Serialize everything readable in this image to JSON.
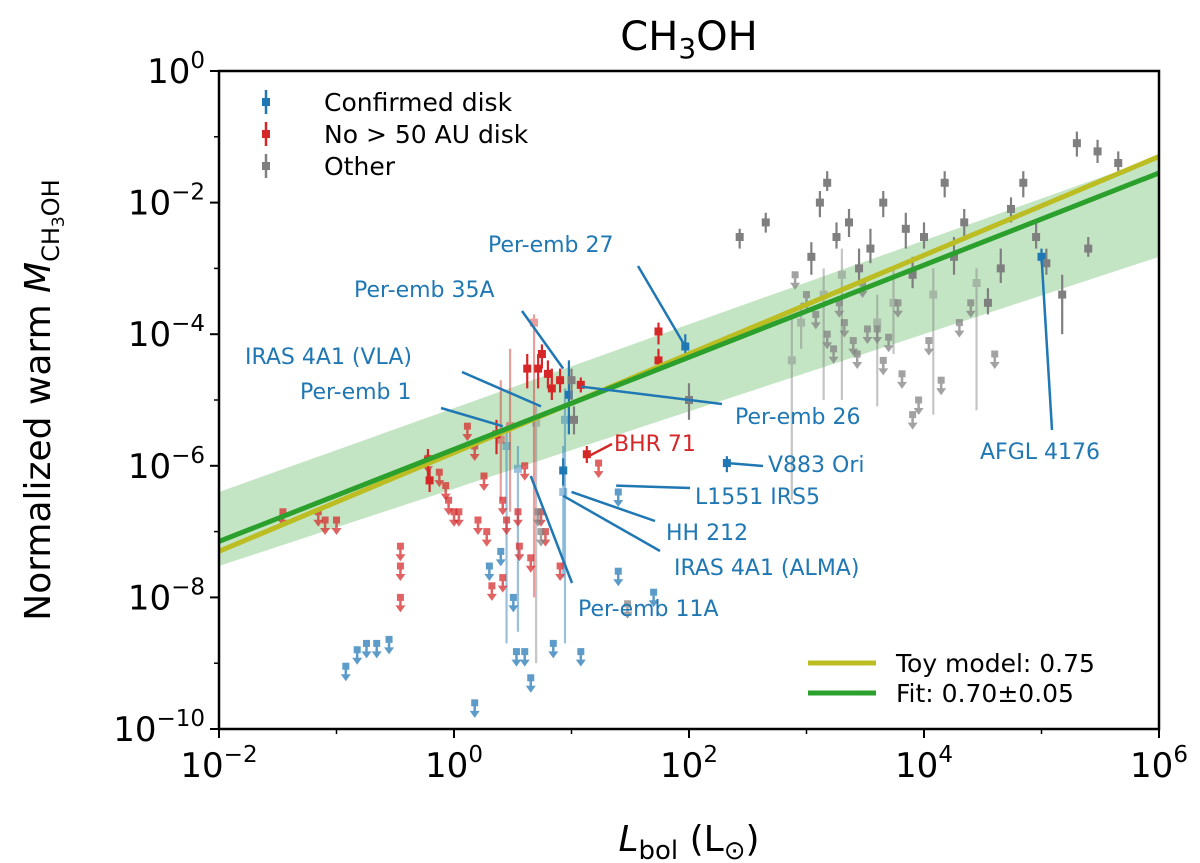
{
  "chart_data": {
    "type": "scatter",
    "title": "CH₃OH",
    "xlabel": "L_bol (L_⊙)",
    "ylabel": "Normalized warm M_CH3OH",
    "xscale": "log",
    "yscale": "log",
    "xlim": [
      0.01,
      1000000
    ],
    "ylim": [
      1e-10,
      1
    ],
    "x_ticks": [
      {
        "label_base": "10",
        "label_exp": "−2",
        "value": 0.01
      },
      {
        "label_base": "10",
        "label_exp": "0",
        "value": 1
      },
      {
        "label_base": "10",
        "label_exp": "2",
        "value": 100
      },
      {
        "label_base": "10",
        "label_exp": "4",
        "value": 10000
      },
      {
        "label_base": "10",
        "label_exp": "6",
        "value": 1000000
      }
    ],
    "y_ticks": [
      {
        "label_base": "10",
        "label_exp": "−10",
        "value": 1e-10
      },
      {
        "label_base": "10",
        "label_exp": "−8",
        "value": 1e-08
      },
      {
        "label_base": "10",
        "label_exp": "−6",
        "value": 1e-06
      },
      {
        "label_base": "10",
        "label_exp": "−4",
        "value": 0.0001
      },
      {
        "label_base": "10",
        "label_exp": "−2",
        "value": 0.01
      },
      {
        "label_base": "10",
        "label_exp": "0",
        "value": 1
      }
    ],
    "colors": {
      "disk": "#1f77b4",
      "nodisk": "#d62728",
      "other": "#7f7f7f",
      "fit": "#2ca02c",
      "toy": "#bcbd22",
      "band": "#2ca02c"
    },
    "series": [
      {
        "name": "Confirmed disk",
        "key": "disk",
        "detections": [
          {
            "x": 93,
            "y": 6.5e-05,
            "lo": 4e-05,
            "hi": 0.0001
          },
          {
            "x": 9.5,
            "y": 1.2e-05,
            "lo": 3e-06,
            "hi": 4e-05
          },
          {
            "x": 8.8,
            "y": 5e-06,
            "lo": 2e-09,
            "hi": 1.5e-05,
            "faint": true
          },
          {
            "x": 8.5,
            "y": 8.5e-07,
            "lo": 5e-07,
            "hi": 1.3e-06
          },
          {
            "x": 8.5,
            "y": 4e-07,
            "lo": 2e-08,
            "hi": 2e-06,
            "faint": true
          },
          {
            "x": 210,
            "y": 1.1e-06,
            "lo": 8e-07,
            "hi": 1.4e-06
          },
          {
            "x": 3.5,
            "y": 9e-07,
            "lo": 3e-09,
            "hi": 2e-06,
            "faint": true
          },
          {
            "x": 2.8,
            "y": 2e-06,
            "lo": 2e-09,
            "hi": 4e-06,
            "faint": true
          },
          {
            "x": 100000,
            "y": 0.0015,
            "lo": 0.0012,
            "hi": 0.002
          }
        ],
        "upper_limits": [
          {
            "x": 0.12,
            "y": 9e-10
          },
          {
            "x": 0.15,
            "y": 1.6e-09
          },
          {
            "x": 0.18,
            "y": 2e-09
          },
          {
            "x": 0.22,
            "y": 2e-09
          },
          {
            "x": 0.28,
            "y": 2.3e-09
          },
          {
            "x": 1.5,
            "y": 2.5e-10
          },
          {
            "x": 2,
            "y": 3e-08
          },
          {
            "x": 2.5,
            "y": 5e-08
          },
          {
            "x": 3.2,
            "y": 1e-08
          },
          {
            "x": 3.4,
            "y": 1.5e-09
          },
          {
            "x": 4,
            "y": 1.5e-09
          },
          {
            "x": 4.5,
            "y": 6e-10
          },
          {
            "x": 7,
            "y": 2e-09
          },
          {
            "x": 12,
            "y": 1.5e-09
          },
          {
            "x": 25,
            "y": 4e-07
          },
          {
            "x": 25,
            "y": 2.5e-08
          },
          {
            "x": 50,
            "y": 1.2e-08
          }
        ]
      },
      {
        "name": "No > 50 AU disk",
        "key": "nodisk",
        "detections": [
          {
            "x": 0.6,
            "y": 1.2e-06,
            "lo": 6e-07,
            "hi": 1.8e-06
          },
          {
            "x": 0.62,
            "y": 6e-07,
            "lo": 4e-07,
            "hi": 9e-07
          },
          {
            "x": 2.3,
            "y": 3e-06,
            "lo": 1.5e-06,
            "hi": 5e-06
          },
          {
            "x": 2.5,
            "y": 2.5e-06,
            "lo": 3e-07,
            "hi": 2e-05,
            "faint": true
          },
          {
            "x": 3,
            "y": 4e-06,
            "lo": 2e-07,
            "hi": 6e-05,
            "faint": true
          },
          {
            "x": 4.2,
            "y": 3e-05,
            "lo": 1.5e-05,
            "hi": 5e-05
          },
          {
            "x": 4.8,
            "y": 0.00015,
            "lo": 1e-08,
            "hi": 0.0002,
            "faint": true
          },
          {
            "x": 5.2,
            "y": 3e-05,
            "lo": 1.5e-05,
            "hi": 5e-05
          },
          {
            "x": 5.6,
            "y": 5e-05,
            "lo": 3e-05,
            "hi": 7e-05
          },
          {
            "x": 6.3,
            "y": 2.5e-05,
            "lo": 1.5e-05,
            "hi": 4e-05
          },
          {
            "x": 6.8,
            "y": 1.5e-05,
            "lo": 1e-05,
            "hi": 3e-05
          },
          {
            "x": 8,
            "y": 2e-05,
            "lo": 1.3e-05,
            "hi": 3e-05
          },
          {
            "x": 12,
            "y": 1.7e-05,
            "lo": 1.3e-05,
            "hi": 2.2e-05
          },
          {
            "x": 13.5,
            "y": 1.5e-06,
            "lo": 1.1e-06,
            "hi": 2e-06
          },
          {
            "x": 55,
            "y": 0.00011,
            "lo": 7e-05,
            "hi": 0.00015
          },
          {
            "x": 55,
            "y": 4e-05,
            "lo": 3e-05,
            "hi": 6e-05
          }
        ],
        "upper_limits": [
          {
            "x": 0.035,
            "y": 2e-07
          },
          {
            "x": 0.07,
            "y": 2e-07
          },
          {
            "x": 0.08,
            "y": 1.5e-07
          },
          {
            "x": 0.1,
            "y": 1.5e-07
          },
          {
            "x": 0.35,
            "y": 6e-08
          },
          {
            "x": 0.35,
            "y": 3e-08
          },
          {
            "x": 0.35,
            "y": 1e-08
          },
          {
            "x": 0.6,
            "y": 1.3e-06
          },
          {
            "x": 0.75,
            "y": 8e-07
          },
          {
            "x": 0.85,
            "y": 5e-07
          },
          {
            "x": 0.9,
            "y": 3e-07
          },
          {
            "x": 1,
            "y": 2e-07
          },
          {
            "x": 1.1,
            "y": 2e-07
          },
          {
            "x": 1.3,
            "y": 4e-06
          },
          {
            "x": 1.5,
            "y": 2e-06
          },
          {
            "x": 1.6,
            "y": 1.5e-07
          },
          {
            "x": 1.8,
            "y": 7e-07
          },
          {
            "x": 1.9,
            "y": 1e-07
          },
          {
            "x": 2.1,
            "y": 1.5e-08
          },
          {
            "x": 2.6,
            "y": 3e-07
          },
          {
            "x": 2.6,
            "y": 2e-08
          },
          {
            "x": 2.8,
            "y": 1.5e-07
          },
          {
            "x": 3.5,
            "y": 2e-07
          },
          {
            "x": 3.6,
            "y": 6e-08
          },
          {
            "x": 4,
            "y": 1e-06
          },
          {
            "x": 4.5,
            "y": 4e-08
          },
          {
            "x": 5.5,
            "y": 2e-07
          },
          {
            "x": 6,
            "y": 1e-07
          },
          {
            "x": 8,
            "y": 3e-08
          },
          {
            "x": 17,
            "y": 1.1e-06
          }
        ]
      },
      {
        "name": "Other",
        "key": "other",
        "detections": [
          {
            "x": 5,
            "y": 4.5e-06,
            "lo": 1e-09,
            "hi": 8e-06,
            "faint": true
          },
          {
            "x": 10.5,
            "y": 5e-06,
            "lo": 3e-06,
            "hi": 8e-06
          },
          {
            "x": 10,
            "y": 2e-05,
            "lo": 1e-05,
            "hi": 3e-05
          },
          {
            "x": 100,
            "y": 1e-05,
            "lo": 5e-06,
            "hi": 1.8e-05
          },
          {
            "x": 270,
            "y": 0.003,
            "lo": 0.002,
            "hi": 0.004
          },
          {
            "x": 450,
            "y": 0.005,
            "lo": 0.0035,
            "hi": 0.007
          },
          {
            "x": 750,
            "y": 4e-05,
            "lo": 3e-07,
            "hi": 0.0002,
            "faint": true
          },
          {
            "x": 900,
            "y": 0.00015,
            "lo": 6e-05,
            "hi": 0.0003,
            "faint": true
          },
          {
            "x": 1100,
            "y": 0.0015,
            "lo": 0.0008,
            "hi": 0.0025
          },
          {
            "x": 1300,
            "y": 0.01,
            "lo": 0.006,
            "hi": 0.015
          },
          {
            "x": 1400,
            "y": 0.0004,
            "lo": 1e-05,
            "hi": 0.001,
            "faint": true
          },
          {
            "x": 1500,
            "y": 0.02,
            "lo": 0.015,
            "hi": 0.03
          },
          {
            "x": 1800,
            "y": 0.003,
            "lo": 0.002,
            "hi": 0.005
          },
          {
            "x": 2000,
            "y": 0.0008,
            "lo": 1e-05,
            "hi": 0.002,
            "faint": true
          },
          {
            "x": 2300,
            "y": 0.005,
            "lo": 0.003,
            "hi": 0.008
          },
          {
            "x": 2800,
            "y": 0.001,
            "lo": 0.0006,
            "hi": 0.002
          },
          {
            "x": 3500,
            "y": 0.002,
            "lo": 0.0012,
            "hi": 0.004
          },
          {
            "x": 4000,
            "y": 0.00015,
            "lo": 8e-06,
            "hi": 0.0004,
            "faint": true
          },
          {
            "x": 4500,
            "y": 0.01,
            "lo": 0.006,
            "hi": 0.015
          },
          {
            "x": 5500,
            "y": 0.0003,
            "lo": 5e-05,
            "hi": 0.001,
            "faint": true
          },
          {
            "x": 7000,
            "y": 0.004,
            "lo": 0.002,
            "hi": 0.007
          },
          {
            "x": 8000,
            "y": 0.0008,
            "lo": 0.0005,
            "hi": 0.0015
          },
          {
            "x": 10000,
            "y": 0.003,
            "lo": 0.002,
            "hi": 0.005
          },
          {
            "x": 12000,
            "y": 0.0004,
            "lo": 6e-06,
            "hi": 0.001,
            "faint": true
          },
          {
            "x": 15000,
            "y": 0.02,
            "lo": 0.012,
            "hi": 0.03
          },
          {
            "x": 18000,
            "y": 0.0015,
            "lo": 0.0008,
            "hi": 0.003
          },
          {
            "x": 22000,
            "y": 0.005,
            "lo": 0.003,
            "hi": 0.008
          },
          {
            "x": 28000,
            "y": 0.0006,
            "lo": 7e-06,
            "hi": 0.001,
            "faint": true
          },
          {
            "x": 35000,
            "y": 0.0003,
            "lo": 0.0002,
            "hi": 0.0005
          },
          {
            "x": 45000,
            "y": 0.001,
            "lo": 0.0006,
            "hi": 0.002
          },
          {
            "x": 55000,
            "y": 0.008,
            "lo": 0.005,
            "hi": 0.012
          },
          {
            "x": 70000,
            "y": 0.02,
            "lo": 0.012,
            "hi": 0.03
          },
          {
            "x": 90000,
            "y": 0.003,
            "lo": 0.002,
            "hi": 0.005
          },
          {
            "x": 110000,
            "y": 0.0012,
            "lo": 0.0008,
            "hi": 0.002
          },
          {
            "x": 150000,
            "y": 0.0004,
            "lo": 0.0001,
            "hi": 0.0008
          },
          {
            "x": 200000,
            "y": 0.08,
            "lo": 0.05,
            "hi": 0.12
          },
          {
            "x": 250000,
            "y": 0.002,
            "lo": 0.0015,
            "hi": 0.003
          },
          {
            "x": 300000,
            "y": 0.06,
            "lo": 0.04,
            "hi": 0.09
          },
          {
            "x": 450000,
            "y": 0.04,
            "lo": 0.03,
            "hi": 0.06
          }
        ],
        "upper_limits": [
          {
            "x": 5.2,
            "y": 2e-07
          },
          {
            "x": 5.5,
            "y": 1e-07
          },
          {
            "x": 30,
            "y": 8e-09
          },
          {
            "x": 800,
            "y": 0.0008
          },
          {
            "x": 1000,
            "y": 0.0004
          },
          {
            "x": 1200,
            "y": 0.0002
          },
          {
            "x": 1500,
            "y": 0.0001
          },
          {
            "x": 1700,
            "y": 6e-05
          },
          {
            "x": 1900,
            "y": 0.0003
          },
          {
            "x": 2100,
            "y": 0.00015
          },
          {
            "x": 2500,
            "y": 8e-05
          },
          {
            "x": 2700,
            "y": 5e-05
          },
          {
            "x": 3000,
            "y": 0.0006
          },
          {
            "x": 3300,
            "y": 0.00012
          },
          {
            "x": 4000,
            "y": 0.00012
          },
          {
            "x": 4500,
            "y": 4e-05
          },
          {
            "x": 5000,
            "y": 9e-05
          },
          {
            "x": 6000,
            "y": 0.0003
          },
          {
            "x": 6500,
            "y": 2.5e-05
          },
          {
            "x": 8000,
            "y": 6e-06
          },
          {
            "x": 9000,
            "y": 1e-05
          },
          {
            "x": 11000,
            "y": 8e-05
          },
          {
            "x": 14000,
            "y": 2e-05
          },
          {
            "x": 20000,
            "y": 0.00015
          },
          {
            "x": 25000,
            "y": 0.0003
          },
          {
            "x": 40000,
            "y": 5e-05
          }
        ]
      }
    ],
    "lines": [
      {
        "name": "Toy model: 0.75",
        "key": "toy",
        "slope": 0.75,
        "intercept_log10": -5.8
      },
      {
        "name": "Fit: 0.70±0.05",
        "key": "fit",
        "slope": 0.7,
        "intercept_log10": -5.75
      }
    ],
    "band": {
      "x": [
        0.01,
        1000000
      ],
      "lower": [
        3e-08,
        0.0015
      ],
      "upper": [
        4e-07,
        0.05
      ]
    },
    "legend": [
      {
        "label": "Confirmed disk",
        "key": "disk"
      },
      {
        "label": "No > 50 AU disk",
        "key": "nodisk"
      },
      {
        "label": "Other",
        "key": "other"
      }
    ],
    "line_legend": [
      {
        "label": "Toy model: 0.75",
        "key": "toy"
      },
      {
        "label": "Fit: 0.70±0.05",
        "key": "fit"
      }
    ],
    "annotations": [
      {
        "text": "Per-emb 27",
        "key": "disk",
        "target": [
          93,
          6.5e-05
        ]
      },
      {
        "text": "Per-emb 35A",
        "key": "disk",
        "target": [
          8.5,
          3e-05
        ]
      },
      {
        "text": "IRAS 4A1 (VLA)",
        "key": "disk",
        "target": [
          5.5,
          8e-06
        ]
      },
      {
        "text": "Per-emb 1",
        "key": "disk",
        "target": [
          2.6,
          4e-06
        ]
      },
      {
        "text": "Per-emb 26",
        "key": "disk",
        "target": [
          12,
          1.6e-05
        ]
      },
      {
        "text": "BHR 71",
        "key": "nodisk",
        "target": [
          14,
          1.4e-06
        ]
      },
      {
        "text": "V883 Ori",
        "key": "disk",
        "target": [
          215,
          1.1e-06
        ]
      },
      {
        "text": "L1551 IRS5",
        "key": "disk",
        "target": [
          24,
          5e-07
        ]
      },
      {
        "text": "HH 212",
        "key": "disk",
        "target": [
          10,
          4e-07
        ]
      },
      {
        "text": "IRAS 4A1 (ALMA)",
        "key": "disk",
        "target": [
          8.5,
          3.5e-07
        ]
      },
      {
        "text": "Per-emb 11A",
        "key": "disk",
        "target": [
          4.5,
          7e-07
        ]
      },
      {
        "text": "AFGL 4176",
        "key": "disk",
        "target": [
          100000,
          0.0015
        ]
      }
    ]
  }
}
